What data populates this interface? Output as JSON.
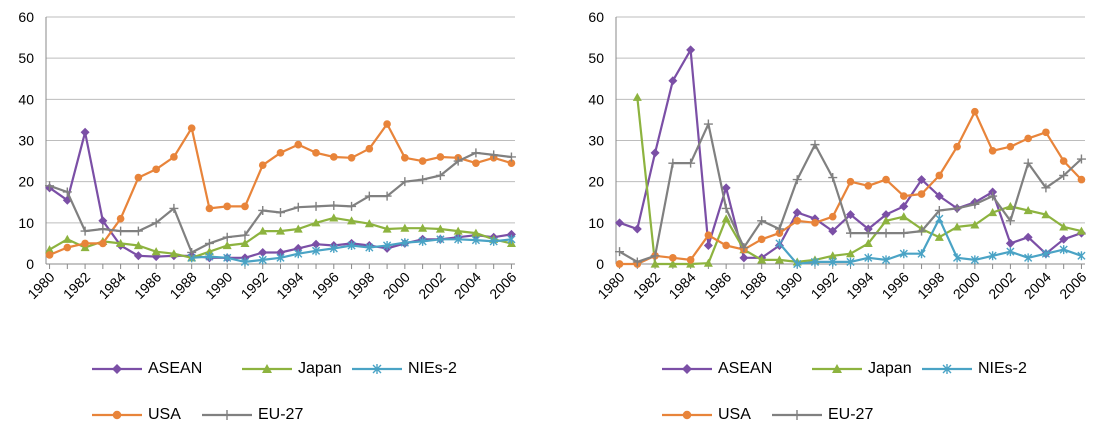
{
  "chart_data": [
    {
      "type": "line",
      "title": "",
      "xlabel": "",
      "ylabel": "",
      "ylim": [
        0,
        60
      ],
      "yticks": [
        0,
        10,
        20,
        30,
        40,
        50,
        60
      ],
      "x": [
        1980,
        1981,
        1982,
        1983,
        1984,
        1985,
        1986,
        1987,
        1988,
        1989,
        1990,
        1991,
        1992,
        1993,
        1994,
        1995,
        1996,
        1997,
        1998,
        1999,
        2000,
        2001,
        2002,
        2003,
        2004,
        2005,
        2006
      ],
      "xtick_labels": [
        "1980",
        "1982",
        "1984",
        "1986",
        "1988",
        "1990",
        "1992",
        "1994",
        "1996",
        "1998",
        "2000",
        "2002",
        "2004",
        "2006"
      ],
      "grid": "horizontal",
      "legend_position": "bottom",
      "series": [
        {
          "name": "ASEAN",
          "color": "#7b4fa6",
          "marker": "diamond",
          "values": [
            18.5,
            15.5,
            32,
            10.5,
            4.5,
            2,
            1.8,
            2,
            2,
            1.5,
            1.5,
            1.5,
            2.8,
            2.8,
            3.8,
            4.8,
            4.5,
            5,
            4.5,
            3.8,
            5,
            6,
            6,
            6.5,
            7,
            6.5,
            7.2
          ]
        },
        {
          "name": "Japan",
          "color": "#8db33f",
          "marker": "triangle",
          "values": [
            3.5,
            6,
            4,
            5.5,
            5,
            4.5,
            3,
            2.5,
            1.5,
            3,
            4.5,
            5,
            8,
            8,
            8.5,
            10,
            11.2,
            10.5,
            9.8,
            8.5,
            8.7,
            8.7,
            8.5,
            8,
            7.5,
            6,
            5
          ]
        },
        {
          "name": "NIEs-2",
          "color": "#4aa3c5",
          "marker": "asterisk",
          "values": [
            null,
            null,
            null,
            null,
            null,
            null,
            null,
            null,
            1.5,
            1.8,
            1.5,
            0.5,
            1,
            1.5,
            2.5,
            3.2,
            3.8,
            4.5,
            4,
            4.5,
            5.2,
            5.5,
            6,
            6,
            5.8,
            5.5,
            6
          ]
        },
        {
          "name": "USA",
          "color": "#e8843a",
          "marker": "circle",
          "values": [
            2.2,
            4,
            5,
            5,
            11,
            21,
            23,
            26,
            33,
            13.5,
            14,
            14,
            24,
            27,
            29,
            27,
            26,
            25.8,
            28,
            34,
            25.8,
            25,
            26,
            25.8,
            24.5,
            25.8,
            24.5
          ]
        },
        {
          "name": "EU-27",
          "color": "#808080",
          "marker": "plus",
          "values": [
            19,
            17.5,
            8,
            8.5,
            8,
            8,
            10,
            13.5,
            2.8,
            5,
            6.5,
            7,
            13,
            12.5,
            13.8,
            14,
            14.2,
            14,
            16.5,
            16.5,
            20,
            20.5,
            21.5,
            25,
            27,
            26.5,
            26
          ]
        }
      ]
    },
    {
      "type": "line",
      "title": "",
      "xlabel": "",
      "ylabel": "",
      "ylim": [
        0,
        60
      ],
      "yticks": [
        0,
        10,
        20,
        30,
        40,
        50,
        60
      ],
      "x": [
        1980,
        1981,
        1982,
        1983,
        1984,
        1985,
        1986,
        1987,
        1988,
        1989,
        1990,
        1991,
        1992,
        1993,
        1994,
        1995,
        1996,
        1997,
        1998,
        1999,
        2000,
        2001,
        2002,
        2003,
        2004,
        2005,
        2006
      ],
      "xtick_labels": [
        "1980",
        "1982",
        "1984",
        "1986",
        "1988",
        "1990",
        "1992",
        "1994",
        "1996",
        "1998",
        "2000",
        "2002",
        "2004",
        "2006"
      ],
      "grid": "horizontal",
      "legend_position": "bottom",
      "series": [
        {
          "name": "ASEAN",
          "color": "#7b4fa6",
          "marker": "diamond",
          "values": [
            10,
            8.5,
            27,
            44.5,
            52,
            4.5,
            18.5,
            1.5,
            1.5,
            4.5,
            12.5,
            11,
            8,
            12,
            8.5,
            12,
            14,
            20.5,
            16.5,
            13.5,
            15,
            17.5,
            5,
            6.5,
            2.5,
            6,
            7.5
          ]
        },
        {
          "name": "Japan",
          "color": "#8db33f",
          "marker": "triangle",
          "values": [
            null,
            40.5,
            0,
            0,
            0,
            0.2,
            11,
            3.5,
            1,
            1,
            0.5,
            1,
            2,
            2.5,
            5,
            10.5,
            11.5,
            8.5,
            6.5,
            9,
            9.5,
            12.5,
            14,
            13,
            12,
            9,
            8
          ]
        },
        {
          "name": "NIEs-2",
          "color": "#4aa3c5",
          "marker": "asterisk",
          "values": [
            null,
            null,
            null,
            null,
            null,
            null,
            null,
            null,
            null,
            5,
            0,
            0.5,
            0.5,
            0.5,
            1.5,
            1,
            2.5,
            2.5,
            11,
            1.5,
            1,
            2,
            3,
            1.5,
            2.5,
            3.5,
            2
          ]
        },
        {
          "name": "USA",
          "color": "#e8843a",
          "marker": "circle",
          "values": [
            0,
            0,
            2,
            1.5,
            1,
            7,
            4.5,
            3.5,
            6,
            7.5,
            10.5,
            10,
            11.5,
            20,
            19,
            20.5,
            16.5,
            17,
            21.5,
            28.5,
            37,
            27.5,
            28.5,
            30.5,
            32,
            25,
            20.5
          ]
        },
        {
          "name": "EU-27",
          "color": "#808080",
          "marker": "plus",
          "values": [
            3,
            0.5,
            2,
            24.5,
            24.5,
            34,
            13.5,
            4,
            10.5,
            8.5,
            20.5,
            29,
            21,
            7.5,
            7.5,
            7.5,
            7.5,
            8,
            13,
            13.5,
            14.5,
            16.5,
            10.5,
            24.5,
            18.5,
            21.5,
            25.5
          ]
        }
      ]
    }
  ]
}
